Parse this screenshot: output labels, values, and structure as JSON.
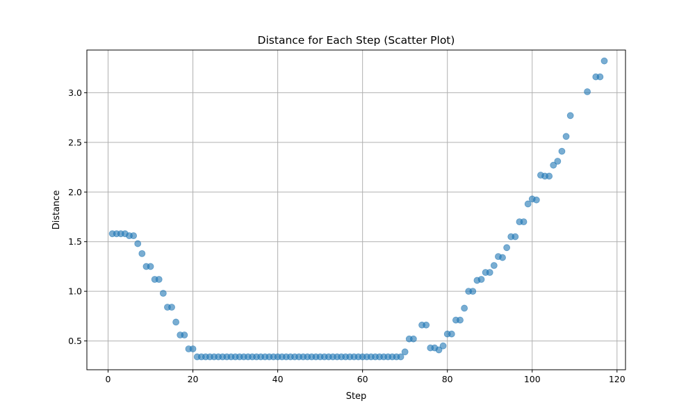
{
  "colors": {
    "marker": "#1f77b4",
    "grid": "#b0b0b0",
    "axis": "#000000",
    "background": "#ffffff"
  },
  "chart_data": {
    "type": "scatter",
    "title": "Distance for Each Step (Scatter Plot)",
    "xlabel": "Step",
    "ylabel": "Distance",
    "xlim": [
      -5,
      122
    ],
    "ylim": [
      0.21,
      3.43
    ],
    "grid": true,
    "marker_alpha": 0.6,
    "xticks": [
      0,
      20,
      40,
      60,
      80,
      100,
      120
    ],
    "xtick_labels": [
      "0",
      "20",
      "40",
      "60",
      "80",
      "100",
      "120"
    ],
    "yticks": [
      0.5,
      1.0,
      1.5,
      2.0,
      2.5,
      3.0
    ],
    "ytick_labels": [
      "0.5",
      "1.0",
      "1.5",
      "2.0",
      "2.5",
      "3.0"
    ],
    "x": [
      1,
      2,
      3,
      4,
      5,
      6,
      7,
      8,
      9,
      10,
      11,
      12,
      13,
      14,
      15,
      16,
      17,
      18,
      19,
      20,
      21,
      22,
      23,
      24,
      25,
      26,
      27,
      28,
      29,
      30,
      31,
      32,
      33,
      34,
      35,
      36,
      37,
      38,
      39,
      40,
      41,
      42,
      43,
      44,
      45,
      46,
      47,
      48,
      49,
      50,
      51,
      52,
      53,
      54,
      55,
      56,
      57,
      58,
      59,
      60,
      61,
      62,
      63,
      64,
      65,
      66,
      67,
      68,
      69,
      70,
      71,
      72,
      74,
      75,
      76,
      77,
      78,
      79,
      80,
      81,
      82,
      83,
      84,
      85,
      86,
      87,
      88,
      89,
      90,
      91,
      92,
      93,
      94,
      95,
      96,
      97,
      98,
      99,
      100,
      101,
      102,
      103,
      104,
      105,
      106,
      107,
      108,
      109,
      113,
      115,
      116,
      117
    ],
    "y": [
      1.58,
      1.58,
      1.58,
      1.58,
      1.56,
      1.56,
      1.48,
      1.38,
      1.25,
      1.25,
      1.12,
      1.12,
      0.98,
      0.84,
      0.84,
      0.69,
      0.56,
      0.56,
      0.42,
      0.42,
      0.34,
      0.34,
      0.34,
      0.34,
      0.34,
      0.34,
      0.34,
      0.34,
      0.34,
      0.34,
      0.34,
      0.34,
      0.34,
      0.34,
      0.34,
      0.34,
      0.34,
      0.34,
      0.34,
      0.34,
      0.34,
      0.34,
      0.34,
      0.34,
      0.34,
      0.34,
      0.34,
      0.34,
      0.34,
      0.34,
      0.34,
      0.34,
      0.34,
      0.34,
      0.34,
      0.34,
      0.34,
      0.34,
      0.34,
      0.34,
      0.34,
      0.34,
      0.34,
      0.34,
      0.34,
      0.34,
      0.34,
      0.34,
      0.34,
      0.39,
      0.52,
      0.52,
      0.66,
      0.66,
      0.43,
      0.43,
      0.41,
      0.45,
      0.57,
      0.57,
      0.71,
      0.71,
      0.83,
      1.0,
      1.0,
      1.11,
      1.12,
      1.19,
      1.19,
      1.26,
      1.35,
      1.34,
      1.44,
      1.55,
      1.55,
      1.7,
      1.7,
      1.88,
      1.93,
      1.92,
      2.17,
      2.16,
      2.16,
      2.27,
      2.31,
      2.41,
      2.56,
      2.77,
      3.01,
      3.16,
      3.16,
      3.32
    ]
  }
}
